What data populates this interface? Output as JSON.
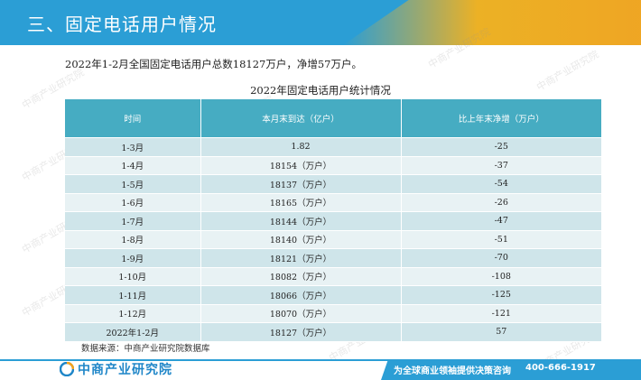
{
  "header": {
    "title": "三、固定电话用户情况"
  },
  "summary": "2022年1-2月全国固定电话用户总数18127万户，净增57万户。",
  "table": {
    "title": "2022年固定电话用户统计情况",
    "headers": [
      "时间",
      "本月末到达（亿户）",
      "比上年末净增（万户）"
    ],
    "rows": [
      [
        "1-3月",
        "1.82",
        "-25"
      ],
      [
        "1-4月",
        "18154（万户）",
        "-37"
      ],
      [
        "1-5月",
        "18137（万户）",
        "-54"
      ],
      [
        "1-6月",
        "18165（万户）",
        "-26"
      ],
      [
        "1-7月",
        "18144（万户）",
        "-47"
      ],
      [
        "1-8月",
        "18140（万户）",
        "-51"
      ],
      [
        "1-9月",
        "18121（万户）",
        "-70"
      ],
      [
        "1-10月",
        "18082（万户）",
        "-108"
      ],
      [
        "1-11月",
        "18066（万户）",
        "-125"
      ],
      [
        "1-12月",
        "18070（万户）",
        "-121"
      ],
      [
        "2022年1-2月",
        "18127（万户）",
        "57"
      ]
    ]
  },
  "source": "数据来源：中商产业研究院数据库",
  "footer": {
    "logo_text": "中商产业研究院",
    "slogan": "为全球商业领袖提供决策咨询",
    "phone": "400-666-1917"
  },
  "watermark": "中商产业研究院",
  "colors": {
    "header_blue": "#2b9ed5",
    "header_accent": "#f6b21c",
    "table_header": "#46acc2",
    "row_odd": "#cfe5ea",
    "row_even": "#e8f2f4"
  }
}
